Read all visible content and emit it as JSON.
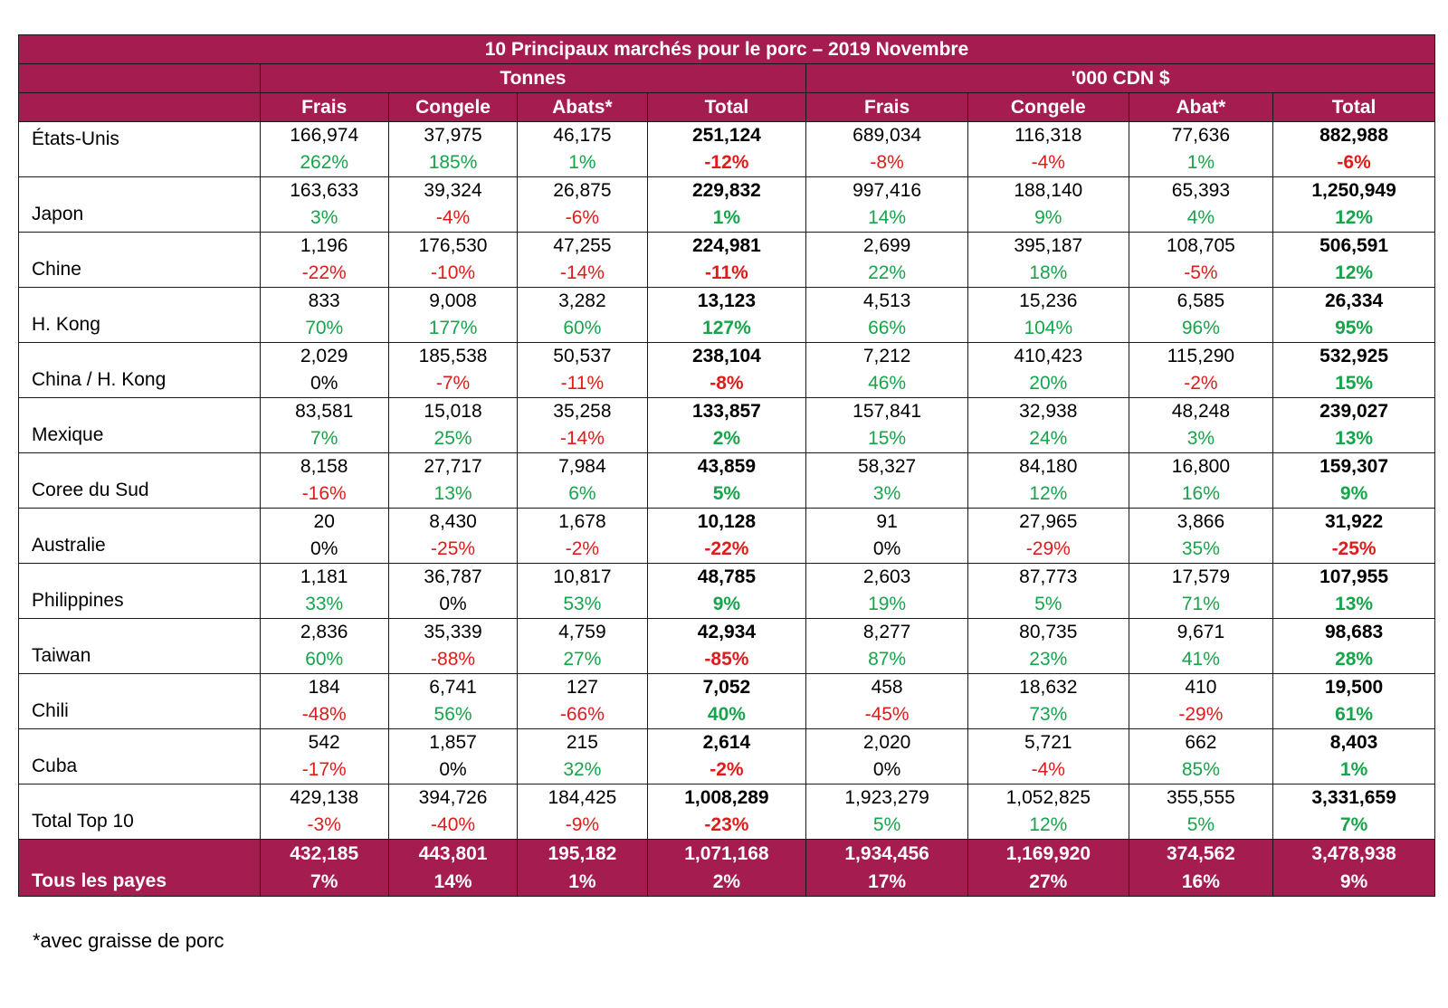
{
  "table": {
    "title": "10 Principaux marchés pour le porc – 2019 Novembre",
    "group_headers": [
      "Tonnes",
      "'000 CDN $"
    ],
    "column_headers": [
      "Frais",
      "Congele",
      "Abats*",
      "Total",
      "Frais",
      "Congele",
      "Abat*",
      "Total"
    ],
    "rows": [
      {
        "name": "États-Unis",
        "values": [
          "166,974",
          "37,975",
          "46,175",
          "251,124",
          "689,034",
          "116,318",
          "77,636",
          "882,988"
        ],
        "changes": [
          "262%",
          "185%",
          "1%",
          "-12%",
          "-8%",
          "-4%",
          "1%",
          "-6%"
        ]
      },
      {
        "name": "Japon",
        "values": [
          "163,633",
          "39,324",
          "26,875",
          "229,832",
          "997,416",
          "188,140",
          "65,393",
          "1,250,949"
        ],
        "changes": [
          "3%",
          "-4%",
          "-6%",
          "1%",
          "14%",
          "9%",
          "4%",
          "12%"
        ]
      },
      {
        "name": "Chine",
        "values": [
          "1,196",
          "176,530",
          "47,255",
          "224,981",
          "2,699",
          "395,187",
          "108,705",
          "506,591"
        ],
        "changes": [
          "-22%",
          "-10%",
          "-14%",
          "-11%",
          "22%",
          "18%",
          "-5%",
          "12%"
        ]
      },
      {
        "name": "H. Kong",
        "values": [
          "833",
          "9,008",
          "3,282",
          "13,123",
          "4,513",
          "15,236",
          "6,585",
          "26,334"
        ],
        "changes": [
          "70%",
          "177%",
          "60%",
          "127%",
          "66%",
          "104%",
          "96%",
          "95%"
        ]
      },
      {
        "name": "China / H. Kong",
        "values": [
          "2,029",
          "185,538",
          "50,537",
          "238,104",
          "7,212",
          "410,423",
          "115,290",
          "532,925"
        ],
        "changes": [
          "0%",
          "-7%",
          "-11%",
          "-8%",
          "46%",
          "20%",
          "-2%",
          "15%"
        ]
      },
      {
        "name": "Mexique",
        "values": [
          "83,581",
          "15,018",
          "35,258",
          "133,857",
          "157,841",
          "32,938",
          "48,248",
          "239,027"
        ],
        "changes": [
          "7%",
          "25%",
          "-14%",
          "2%",
          "15%",
          "24%",
          "3%",
          "13%"
        ]
      },
      {
        "name": "Coree du Sud",
        "values": [
          "8,158",
          "27,717",
          "7,984",
          "43,859",
          "58,327",
          "84,180",
          "16,800",
          "159,307"
        ],
        "changes": [
          "-16%",
          "13%",
          "6%",
          "5%",
          "3%",
          "12%",
          "16%",
          "9%"
        ]
      },
      {
        "name": "Australie",
        "values": [
          "20",
          "8,430",
          "1,678",
          "10,128",
          "91",
          "27,965",
          "3,866",
          "31,922"
        ],
        "changes": [
          "0%",
          "-25%",
          "-2%",
          "-22%",
          "0%",
          "-29%",
          "35%",
          "-25%"
        ]
      },
      {
        "name": "Philippines",
        "values": [
          "1,181",
          "36,787",
          "10,817",
          "48,785",
          "2,603",
          "87,773",
          "17,579",
          "107,955"
        ],
        "changes": [
          "33%",
          "0%",
          "53%",
          "9%",
          "19%",
          "5%",
          "71%",
          "13%"
        ]
      },
      {
        "name": "Taiwan",
        "values": [
          "2,836",
          "35,339",
          "4,759",
          "42,934",
          "8,277",
          "80,735",
          "9,671",
          "98,683"
        ],
        "changes": [
          "60%",
          "-88%",
          "27%",
          "-85%",
          "87%",
          "23%",
          "41%",
          "28%"
        ]
      },
      {
        "name": "Chili",
        "values": [
          "184",
          "6,741",
          "127",
          "7,052",
          "458",
          "18,632",
          "410",
          "19,500"
        ],
        "changes": [
          "-48%",
          "56%",
          "-66%",
          "40%",
          "-45%",
          "73%",
          "-29%",
          "61%"
        ]
      },
      {
        "name": "Cuba",
        "values": [
          "542",
          "1,857",
          "215",
          "2,614",
          "2,020",
          "5,721",
          "662",
          "8,403"
        ],
        "changes": [
          "-17%",
          "0%",
          "32%",
          "-2%",
          "0%",
          "-4%",
          "85%",
          "1%"
        ]
      },
      {
        "name": "Total Top 10",
        "values": [
          "429,138",
          "394,726",
          "184,425",
          "1,008,289",
          "1,923,279",
          "1,052,825",
          "355,555",
          "3,331,659"
        ],
        "changes": [
          "-3%",
          "-40%",
          "-9%",
          "-23%",
          "5%",
          "12%",
          "5%",
          "7%"
        ]
      }
    ],
    "final_row": {
      "name": "Tous les payes",
      "values": [
        "432,185",
        "443,801",
        "195,182",
        "1,071,168",
        "1,934,456",
        "1,169,920",
        "374,562",
        "3,478,938"
      ],
      "changes": [
        "7%",
        "14%",
        "1%",
        "2%",
        "17%",
        "27%",
        "16%",
        "9%"
      ]
    }
  },
  "colors": {
    "header_bg": "#a51c50",
    "positive": "#17a44b",
    "negative": "#e01b1b"
  },
  "footnote": "*avec graisse de porc"
}
